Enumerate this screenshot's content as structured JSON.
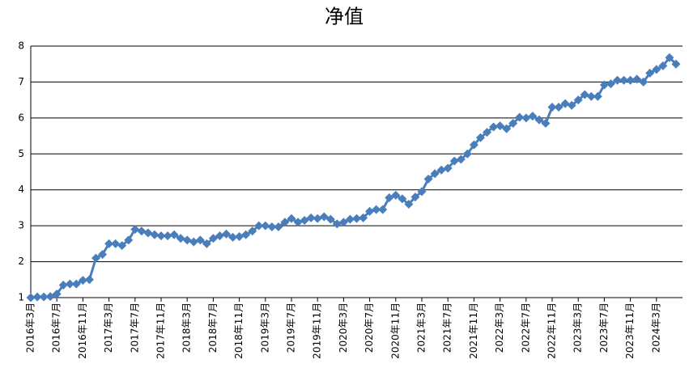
{
  "chart_data": {
    "type": "line",
    "title": "净值",
    "categories": [
      "2016年3月",
      null,
      null,
      null,
      "2016年7月",
      null,
      null,
      null,
      "2016年11月",
      null,
      null,
      null,
      "2017年3月",
      null,
      null,
      null,
      "2017年7月",
      null,
      null,
      null,
      "2017年11月",
      null,
      null,
      null,
      "2018年3月",
      null,
      null,
      null,
      "2018年7月",
      null,
      null,
      null,
      "2018年11月",
      null,
      null,
      null,
      "2019年3月",
      null,
      null,
      null,
      "2019年7月",
      null,
      null,
      null,
      "2019年11月",
      null,
      null,
      null,
      "2020年3月",
      null,
      null,
      null,
      "2020年7月",
      null,
      null,
      null,
      "2020年11月",
      null,
      null,
      null,
      "2021年3月",
      null,
      null,
      null,
      "2021年7月",
      null,
      null,
      null,
      "2021年11月",
      null,
      null,
      null,
      "2022年3月",
      null,
      null,
      null,
      "2022年7月",
      null,
      null,
      null,
      "2022年11月",
      null,
      null,
      null,
      "2023年3月",
      null,
      null,
      null,
      "2023年7月",
      null,
      null,
      null,
      "2023年11月",
      null,
      null,
      null,
      "2024年3月",
      null,
      null,
      null
    ],
    "values": [
      1.0,
      1.02,
      1.02,
      1.03,
      1.1,
      1.35,
      1.38,
      1.38,
      1.48,
      1.5,
      2.1,
      2.2,
      2.5,
      2.5,
      2.45,
      2.6,
      2.9,
      2.85,
      2.8,
      2.75,
      2.72,
      2.72,
      2.75,
      2.65,
      2.6,
      2.55,
      2.6,
      2.5,
      2.65,
      2.72,
      2.77,
      2.68,
      2.7,
      2.75,
      2.85,
      3.0,
      3.0,
      2.97,
      2.97,
      3.1,
      3.2,
      3.1,
      3.15,
      3.22,
      3.2,
      3.25,
      3.18,
      3.05,
      3.1,
      3.18,
      3.2,
      3.22,
      3.4,
      3.45,
      3.45,
      3.78,
      3.85,
      3.75,
      3.6,
      3.8,
      3.95,
      4.3,
      4.45,
      4.55,
      4.6,
      4.8,
      4.85,
      5.0,
      5.25,
      5.45,
      5.6,
      5.75,
      5.78,
      5.7,
      5.85,
      6.02,
      6.0,
      6.05,
      5.95,
      5.85,
      6.3,
      6.3,
      6.4,
      6.35,
      6.5,
      6.65,
      6.6,
      6.6,
      6.92,
      6.95,
      7.05,
      7.05,
      7.05,
      7.08,
      7.0,
      7.25,
      7.35,
      7.45,
      7.68,
      7.5
    ],
    "color": "#4a7ebb",
    "ylim": [
      1,
      8
    ],
    "yticks": [
      1,
      2,
      3,
      4,
      5,
      6,
      7,
      8
    ],
    "grid": true
  }
}
